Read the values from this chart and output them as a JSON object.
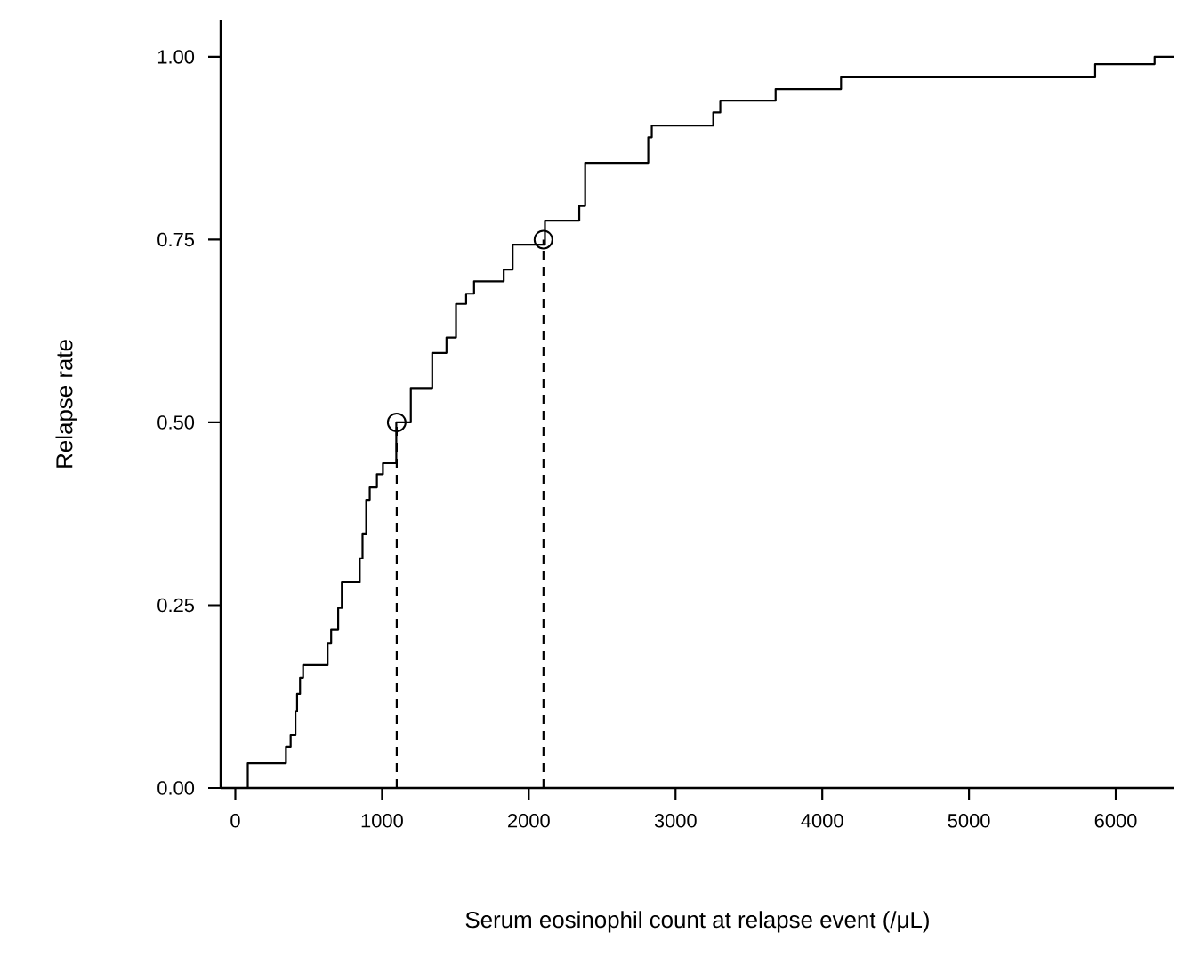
{
  "chart_data": {
    "type": "step",
    "xlabel": "Serum eosinophil count at relapse event (/μL)",
    "ylabel": "Relapse rate",
    "xlim": [
      -100,
      6400
    ],
    "ylim": [
      0,
      1.05
    ],
    "xticks": [
      0,
      1000,
      2000,
      3000,
      4000,
      5000,
      6000
    ],
    "yticks": [
      {
        "value": 0,
        "label": "0.00"
      },
      {
        "value": 0.25,
        "label": "0.25"
      },
      {
        "value": 0.5,
        "label": "0.50"
      },
      {
        "value": 0.75,
        "label": "0.75"
      },
      {
        "value": 1,
        "label": "1.00"
      }
    ],
    "series": [
      {
        "color": "#000000",
        "line_style": "solid",
        "marker": "none",
        "x": [
          0,
          85,
          345,
          377,
          410,
          421,
          441,
          462,
          629,
          653,
          701,
          726,
          848,
          867,
          892,
          916,
          965,
          1006,
          1097,
          1196,
          1342,
          1439,
          1504,
          1573,
          1627,
          1829,
          1890,
          2110,
          2344,
          2384,
          2814,
          2838,
          3257,
          3305,
          3682,
          4128,
          5860,
          6265,
          6400
        ],
        "values": [
          0,
          0.034,
          0.056,
          0.073,
          0.105,
          0.129,
          0.151,
          0.168,
          0.198,
          0.217,
          0.246,
          0.282,
          0.314,
          0.348,
          0.394,
          0.411,
          0.429,
          0.444,
          0.5,
          0.547,
          0.595,
          0.616,
          0.662,
          0.676,
          0.693,
          0.709,
          0.743,
          0.776,
          0.796,
          0.855,
          0.89,
          0.906,
          0.924,
          0.94,
          0.956,
          0.972,
          0.99,
          1.0,
          1.0
        ]
      },
      {
        "type": "line",
        "color": "#000000",
        "line_style": "dashed",
        "marker": "none",
        "x": [
          1100,
          1100
        ],
        "values": [
          0,
          0.5
        ]
      },
      {
        "type": "line",
        "color": "#000000",
        "line_style": "dashed",
        "marker": "none",
        "x": [
          2100,
          2100
        ],
        "values": [
          0,
          0.75
        ]
      },
      {
        "type": "scatter",
        "color": "#000000",
        "marker": "circle",
        "x": [
          1100,
          2100
        ],
        "values": [
          0.5,
          0.75
        ]
      }
    ]
  }
}
